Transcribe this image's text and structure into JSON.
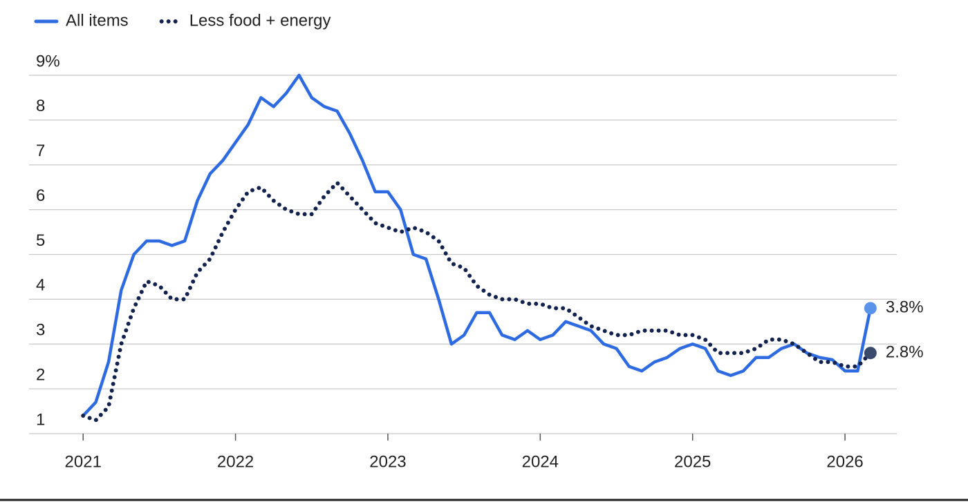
{
  "chart_data": {
    "type": "line",
    "x": [
      2021.0,
      2021.083,
      2021.167,
      2021.25,
      2021.333,
      2021.417,
      2021.5,
      2021.583,
      2021.667,
      2021.75,
      2021.833,
      2021.917,
      2022.0,
      2022.083,
      2022.167,
      2022.25,
      2022.333,
      2022.417,
      2022.5,
      2022.583,
      2022.667,
      2022.75,
      2022.833,
      2022.917,
      2023.0,
      2023.083,
      2023.167,
      2023.25,
      2023.333,
      2023.417,
      2023.5,
      2023.583,
      2023.667,
      2023.75,
      2023.833,
      2023.917,
      2024.0,
      2024.083,
      2024.167,
      2024.25,
      2024.333,
      2024.417,
      2024.5,
      2024.583,
      2024.667,
      2024.75,
      2024.833,
      2024.917,
      2025.0,
      2025.083,
      2025.167,
      2025.25,
      2025.333,
      2025.417,
      2025.5,
      2025.583,
      2025.667,
      2025.75,
      2025.833,
      2025.917,
      2026.0,
      2026.083,
      2026.167
    ],
    "series": [
      {
        "name": "All items",
        "color": "#2f6be0",
        "style": "solid",
        "end_color": "#5b93ea",
        "end_label": "3.8%",
        "values": [
          1.4,
          1.7,
          2.6,
          4.2,
          5.0,
          5.3,
          5.3,
          5.2,
          5.3,
          6.2,
          6.8,
          7.1,
          7.5,
          7.9,
          8.5,
          8.3,
          8.6,
          9.0,
          8.5,
          8.3,
          8.2,
          7.7,
          7.1,
          6.4,
          6.4,
          6.0,
          5.0,
          4.9,
          4.0,
          3.0,
          3.2,
          3.7,
          3.7,
          3.2,
          3.1,
          3.3,
          3.1,
          3.2,
          3.5,
          3.4,
          3.3,
          3.0,
          2.9,
          2.5,
          2.4,
          2.6,
          2.7,
          2.9,
          3.0,
          2.9,
          2.4,
          2.3,
          2.4,
          2.7,
          2.7,
          2.9,
          3.0,
          2.8,
          2.7,
          2.65,
          2.4,
          2.4,
          3.8
        ]
      },
      {
        "name": "Less food + energy",
        "color": "#13234e",
        "style": "dotted",
        "end_color": "#3a4a6e",
        "end_label": "2.8%",
        "values": [
          1.4,
          1.3,
          1.6,
          3.0,
          3.8,
          4.4,
          4.3,
          4.0,
          4.0,
          4.6,
          4.9,
          5.5,
          6.0,
          6.4,
          6.5,
          6.2,
          6.0,
          5.9,
          5.9,
          6.3,
          6.6,
          6.3,
          6.0,
          5.7,
          5.6,
          5.5,
          5.6,
          5.5,
          5.3,
          4.8,
          4.7,
          4.3,
          4.1,
          4.0,
          4.0,
          3.9,
          3.9,
          3.8,
          3.8,
          3.6,
          3.4,
          3.3,
          3.2,
          3.2,
          3.3,
          3.3,
          3.3,
          3.2,
          3.2,
          3.1,
          2.8,
          2.8,
          2.8,
          2.9,
          3.1,
          3.1,
          3.0,
          2.8,
          2.6,
          2.6,
          2.5,
          2.5,
          2.8
        ]
      }
    ],
    "xlim": [
      2020.645,
      2026.34
    ],
    "xticks": [
      2021,
      2022,
      2023,
      2024,
      2025,
      2026
    ],
    "ylim": [
      1,
      9
    ],
    "yticks": [
      1,
      2,
      3,
      4,
      5,
      6,
      7,
      8,
      {
        "value": 9,
        "label": "9%"
      }
    ],
    "grid": true,
    "legend": "top-left"
  }
}
